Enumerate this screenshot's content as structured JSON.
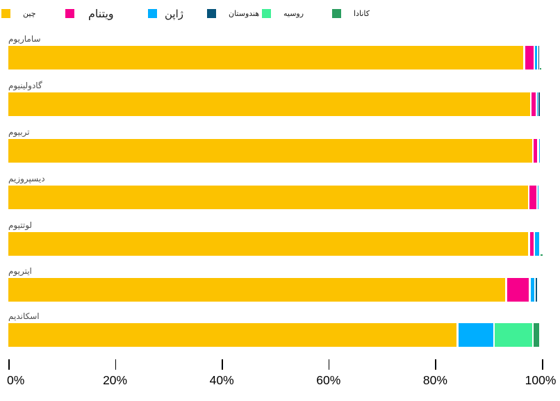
{
  "chart_data": {
    "type": "bar",
    "orientation": "horizontal",
    "stacked": true,
    "unit": "percent",
    "title": "",
    "grid": false,
    "legend_position": "top",
    "xlim": [
      0,
      100
    ],
    "x_ticks": [
      "0%",
      "20%",
      "40%",
      "60%",
      "80%",
      "100%"
    ],
    "categories": [
      "ساماریوم",
      "گادولینیوم",
      "تربیوم",
      "دیسپروزیم",
      "لوتتیوم",
      "ایتریوم",
      "اسکاندیم"
    ],
    "series": [
      {
        "key": "china",
        "name": "چین",
        "color": "#FCC200",
        "values": [
          96.7,
          97.9,
          98.3,
          97.5,
          97.6,
          93.3,
          84.2
        ]
      },
      {
        "key": "vietnam",
        "name": "ویتنام",
        "color": "#F7008B",
        "values": [
          1.85,
          1.05,
          1.0,
          1.6,
          1.0,
          4.4,
          0
        ]
      },
      {
        "key": "japan",
        "name": "ژاپن",
        "color": "#00AEFF",
        "values": [
          0.65,
          0.3,
          0.3,
          0.4,
          1.1,
          1.0,
          6.8
        ]
      },
      {
        "key": "india",
        "name": "هندوستان",
        "color": "#07547A",
        "values": [
          0.3,
          0.3,
          0,
          0,
          0,
          0.5,
          0
        ]
      },
      {
        "key": "russia",
        "name": "روسیه",
        "color": "#40F096",
        "values": [
          0,
          0,
          0,
          0,
          0,
          0,
          7.3
        ]
      },
      {
        "key": "canada",
        "name": "کانادا",
        "color": "#2A9D5F",
        "values": [
          0.1,
          0,
          0,
          0,
          0.1,
          0,
          1.3
        ]
      }
    ]
  }
}
